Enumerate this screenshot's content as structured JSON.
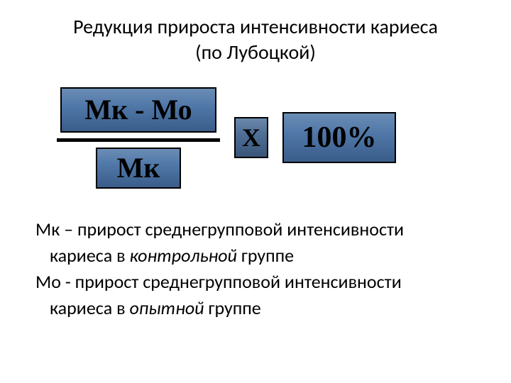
{
  "title_line1": "Редукция прироста интенсивности кариеса",
  "title_line2": "(по Лубоцкой)",
  "formula": {
    "numerator": "Мк - Мо",
    "denominator": "Мк",
    "operator": "Х",
    "result": "100%",
    "box_gradient_top": "#6b8db5",
    "box_gradient_mid": "#5078a8",
    "box_gradient_bottom": "#3a5d8a",
    "border_color": "#000000",
    "line_color": "#000000",
    "font_family": "Times New Roman",
    "font_weight": "bold"
  },
  "definitions": {
    "mk_line1": "Мк – прирост среднегрупповой интенсивности",
    "mk_line2_prefix": "кариеса в ",
    "mk_line2_italic": "контрольной",
    "mk_line2_suffix": " группе",
    "mo_line1": "Мо - прирост среднегрупповой интенсивности",
    "mo_line2_prefix": "кариеса в ",
    "mo_line2_italic": "опытной",
    "mo_line2_suffix": " группе"
  },
  "colors": {
    "background": "#ffffff",
    "text": "#000000"
  },
  "fonts": {
    "body": "Calibri",
    "formula": "Times New Roman",
    "title_size": 28,
    "formula_size": 40,
    "desc_size": 26
  }
}
